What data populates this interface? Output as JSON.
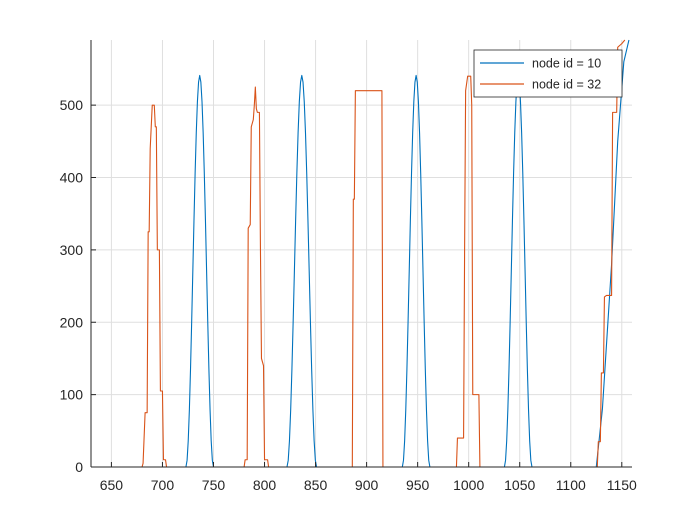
{
  "chart_data": {
    "type": "line",
    "title": "",
    "xlabel": "",
    "ylabel": "",
    "xlim": [
      630,
      1160
    ],
    "ylim": [
      0,
      590
    ],
    "x_ticks": [
      650,
      700,
      750,
      800,
      850,
      900,
      950,
      1000,
      1050,
      1100,
      1150
    ],
    "y_ticks": [
      0,
      100,
      200,
      300,
      400,
      500
    ],
    "grid": true,
    "legend_position": "top-right",
    "series": [
      {
        "name": "node id = 10",
        "color": "#0072BD",
        "peaks": [
          {
            "start": 723,
            "end": 750,
            "peak": 541
          },
          {
            "start": 822,
            "end": 851,
            "peak": 541
          },
          {
            "start": 935,
            "end": 962,
            "peak": 541
          },
          {
            "start": 1035,
            "end": 1062,
            "peak": 541
          }
        ],
        "tail": [
          [
            1125,
            0
          ],
          [
            1131,
            80
          ],
          [
            1140,
            280
          ],
          [
            1146,
            450
          ],
          [
            1152,
            560
          ],
          [
            1157,
            590
          ]
        ]
      },
      {
        "name": "node id = 32",
        "color": "#D95319",
        "points": [
          [
            630,
            0
          ],
          [
            680,
            0
          ],
          [
            681,
            5
          ],
          [
            683,
            75
          ],
          [
            685,
            75
          ],
          [
            686,
            325
          ],
          [
            687,
            325
          ],
          [
            688,
            440
          ],
          [
            690,
            500
          ],
          [
            692,
            500
          ],
          [
            693,
            470
          ],
          [
            694,
            470
          ],
          [
            695,
            300
          ],
          [
            697,
            300
          ],
          [
            698,
            105
          ],
          [
            700,
            105
          ],
          [
            701,
            10
          ],
          [
            703,
            10
          ],
          [
            704,
            0
          ],
          [
            780,
            0
          ],
          [
            781,
            10
          ],
          [
            783,
            10
          ],
          [
            784,
            330
          ],
          [
            786,
            335
          ],
          [
            787,
            470
          ],
          [
            789,
            480
          ],
          [
            790,
            500
          ],
          [
            791,
            525
          ],
          [
            792,
            495
          ],
          [
            793,
            490
          ],
          [
            795,
            490
          ],
          [
            796,
            300
          ],
          [
            797,
            150
          ],
          [
            799,
            140
          ],
          [
            800,
            10
          ],
          [
            803,
            10
          ],
          [
            804,
            0
          ],
          [
            886,
            0
          ],
          [
            887,
            370
          ],
          [
            888,
            370
          ],
          [
            889,
            520
          ],
          [
            915,
            520
          ],
          [
            916,
            0
          ],
          [
            988,
            0
          ],
          [
            989,
            40
          ],
          [
            995,
            40
          ],
          [
            996,
            300
          ],
          [
            997,
            520
          ],
          [
            999,
            540
          ],
          [
            1002,
            540
          ],
          [
            1003,
            500
          ],
          [
            1004,
            100
          ],
          [
            1010,
            100
          ],
          [
            1011,
            0
          ],
          [
            1126,
            0
          ],
          [
            1127,
            35
          ],
          [
            1129,
            35
          ],
          [
            1130,
            130
          ],
          [
            1132,
            130
          ],
          [
            1133,
            235
          ],
          [
            1135,
            237
          ],
          [
            1137,
            237
          ],
          [
            1140,
            237
          ],
          [
            1141,
            490
          ],
          [
            1145,
            490
          ],
          [
            1146,
            580
          ],
          [
            1150,
            585
          ],
          [
            1153,
            590
          ]
        ]
      }
    ]
  }
}
